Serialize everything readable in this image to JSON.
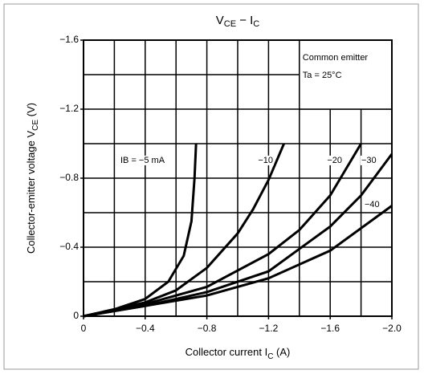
{
  "chart_data": {
    "type": "line",
    "title": [
      "V",
      "CE",
      " − I",
      "C"
    ],
    "xlabel": [
      "Collector current  I",
      "C",
      "   (A)"
    ],
    "ylabel": [
      "Collector-emitter voltage   V",
      "CE",
      "   (V)"
    ],
    "annotation": [
      "Common emitter",
      "Ta = 25°C"
    ],
    "xlim": [
      0,
      -2.0
    ],
    "ylim": [
      0,
      -1.6
    ],
    "xticks": [
      0,
      {
        "value": -0.4,
        "label": "−0.4"
      },
      {
        "value": -0.8,
        "label": "−0.8"
      },
      {
        "value": -1.2,
        "label": "−1.2"
      },
      {
        "value": -1.6,
        "label": "−1.6"
      },
      {
        "value": -2.0,
        "label": "−2.0"
      }
    ],
    "yticks": [
      0,
      {
        "value": -0.4,
        "label": "−0.4"
      },
      {
        "value": -0.8,
        "label": "−0.8"
      },
      {
        "value": -1.2,
        "label": "−1.2"
      },
      {
        "value": -1.6,
        "label": "−1.6"
      }
    ],
    "xgrid": [
      -0.2,
      -0.4,
      -0.6,
      -0.8,
      -1.0,
      -1.2,
      -1.4,
      -1.6,
      -1.8
    ],
    "ygrid": [
      -0.2,
      -0.4,
      -0.6,
      -0.8,
      -1.0,
      -1.2,
      -1.4
    ],
    "grid": true,
    "series": [
      {
        "name": "IB = −5 mA",
        "color": "#000000",
        "x": [
          0,
          -0.2,
          -0.4,
          -0.55,
          -0.65,
          -0.7,
          -0.72,
          -0.73
        ],
        "values": [
          0,
          -0.04,
          -0.1,
          -0.2,
          -0.35,
          -0.55,
          -0.8,
          -1.0
        ]
      },
      {
        "name": "−10",
        "color": "#000000",
        "x": [
          0,
          -0.4,
          -0.6,
          -0.8,
          -1.0,
          -1.1,
          -1.2,
          -1.3
        ],
        "values": [
          0,
          -0.08,
          -0.15,
          -0.28,
          -0.48,
          -0.62,
          -0.79,
          -1.0
        ]
      },
      {
        "name": "−20",
        "color": "#000000",
        "x": [
          0,
          -0.4,
          -0.8,
          -1.2,
          -1.4,
          -1.6,
          -1.8
        ],
        "values": [
          0,
          -0.07,
          -0.17,
          -0.36,
          -0.5,
          -0.7,
          -1.0
        ]
      },
      {
        "name": "−30",
        "color": "#000000",
        "x": [
          0,
          -0.4,
          -0.8,
          -1.2,
          -1.6,
          -1.8,
          -2.0
        ],
        "values": [
          0,
          -0.06,
          -0.14,
          -0.26,
          -0.52,
          -0.7,
          -0.94
        ]
      },
      {
        "name": "−40",
        "color": "#000000",
        "x": [
          0,
          -0.4,
          -0.8,
          -1.2,
          -1.6,
          -2.0
        ],
        "values": [
          0,
          -0.06,
          -0.12,
          -0.22,
          -0.38,
          -0.64
        ]
      }
    ]
  }
}
